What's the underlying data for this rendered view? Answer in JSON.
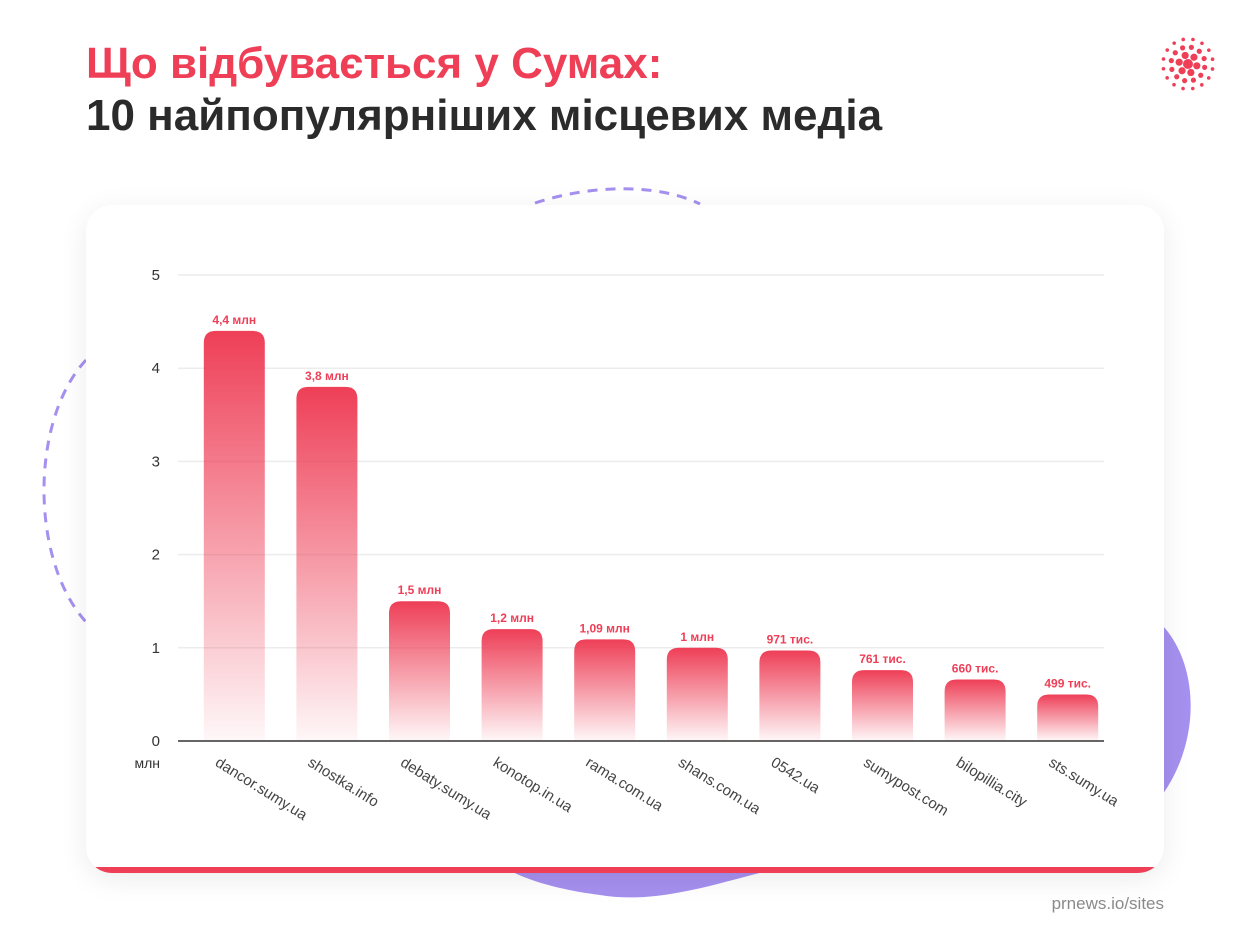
{
  "header": {
    "title_line1": "Що відбувається у Сумах:",
    "title_line2": "10 найпопулярніших місцевих медіа"
  },
  "footer": {
    "source": "prnews.io/sites"
  },
  "colors": {
    "accent": "#ee3f57",
    "title_dark": "#2b2b2b",
    "decor_purple": "#a08cf0",
    "axis": "#333333",
    "grid": "#ececec",
    "label": "#444444"
  },
  "icons": {
    "logo": "dots-burst-logo-icon"
  },
  "chart_data": {
    "type": "bar",
    "categories": [
      "dancor.sumy.ua",
      "shostka.info",
      "debaty.sumy.ua",
      "konotop.in.ua",
      "rama.com.ua",
      "shans.com.ua",
      "0542.ua",
      "sumypost.com",
      "bilopillia.city",
      "sts.sumy.ua"
    ],
    "values": [
      4.4,
      3.8,
      1.5,
      1.2,
      1.09,
      1,
      0.971,
      0.761,
      0.66,
      0.499
    ],
    "data_labels": [
      "4,4 млн",
      "3,8 млн",
      "1,5 млн",
      "1,2 млн",
      "1,09 млн",
      "1 млн",
      "971 тис.",
      "761 тис.",
      "660 тис.",
      "499 тис."
    ],
    "ylim": [
      0,
      5
    ],
    "yticks": [
      "0",
      "1",
      "2",
      "3",
      "4",
      "5"
    ],
    "yunit": "млн",
    "grid": true,
    "legend": "none"
  }
}
